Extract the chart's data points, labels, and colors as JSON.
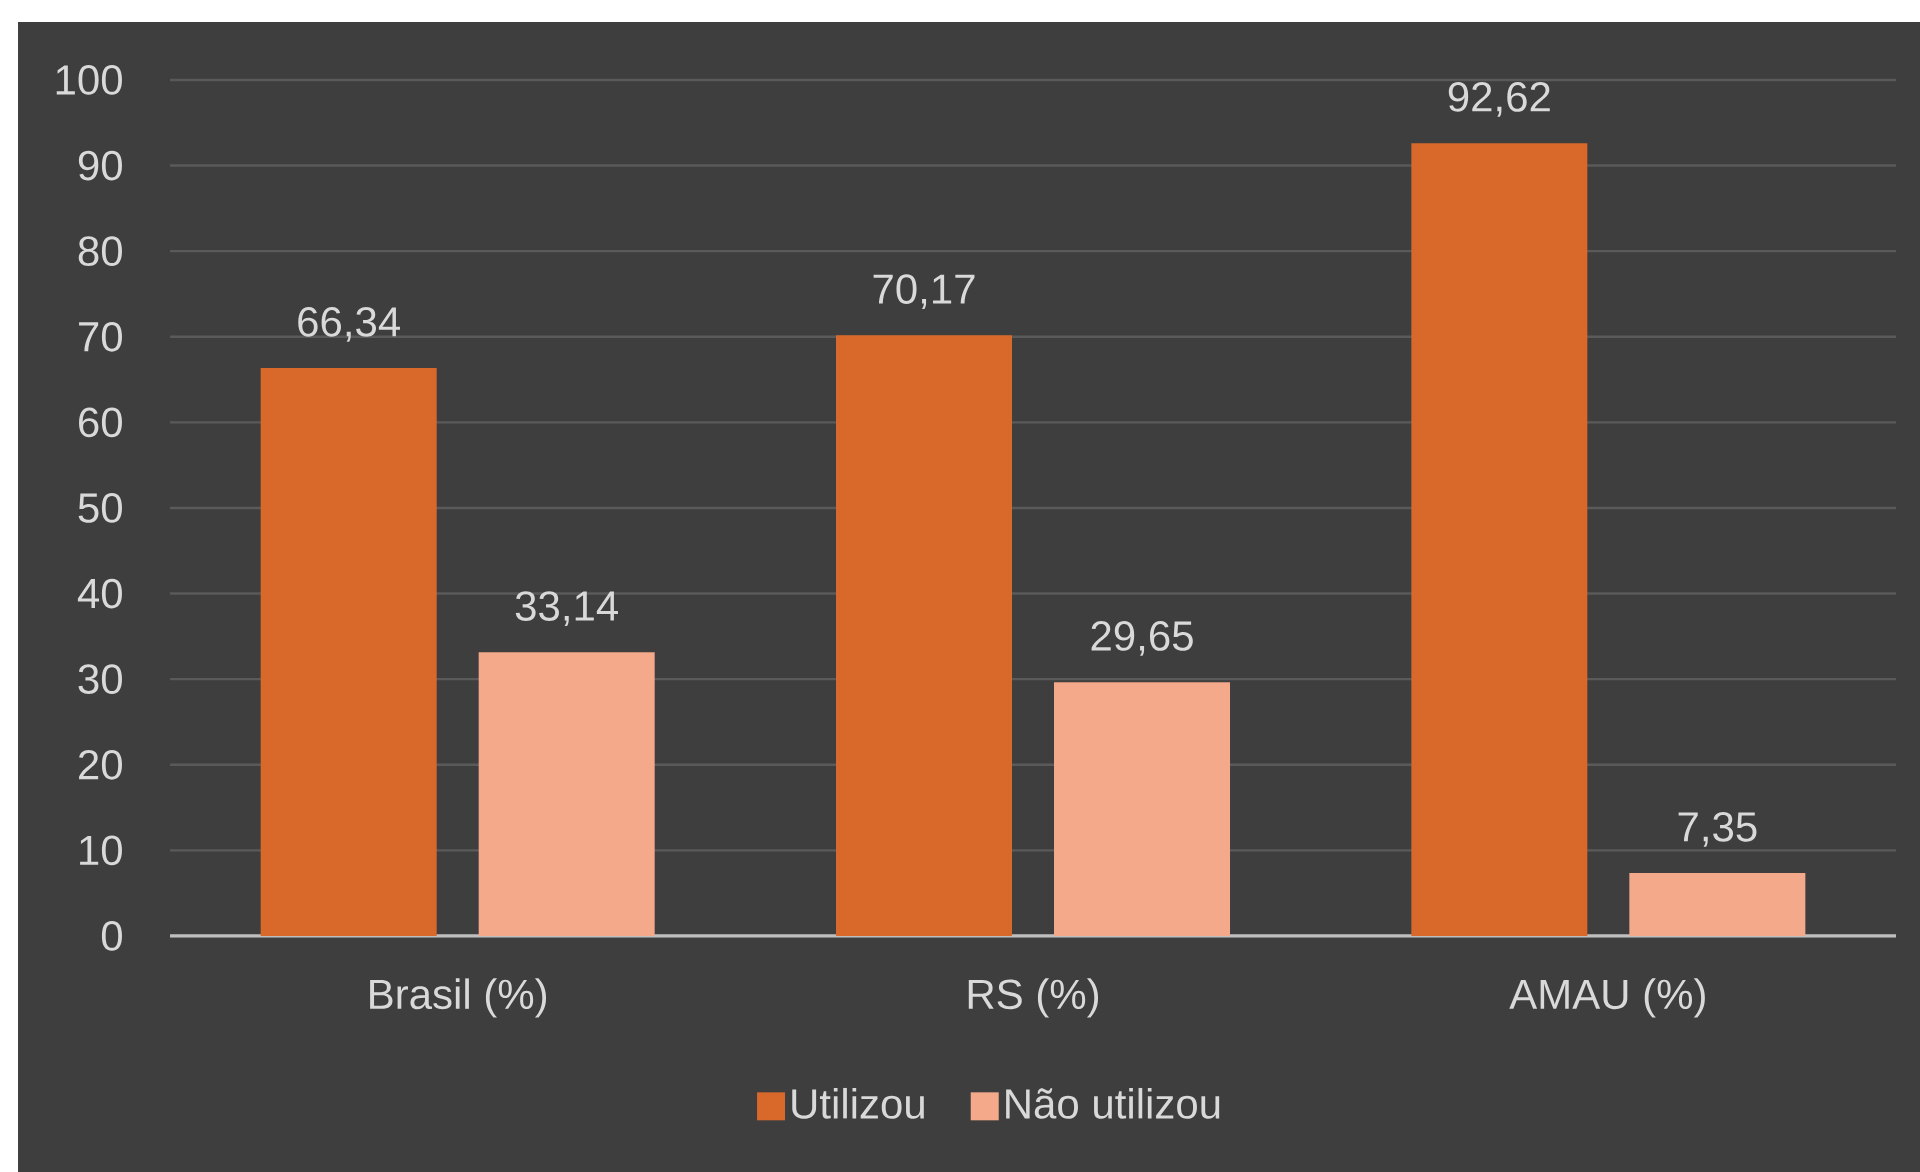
{
  "chart_data": {
    "type": "bar",
    "categories": [
      "Brasil (%)",
      "RS (%)",
      "AMAU (%)"
    ],
    "series": [
      {
        "name": "Utilizou",
        "color": "#d9692a",
        "values": [
          66.34,
          70.17,
          92.62
        ],
        "value_labels": [
          "66,34",
          "70,17",
          "92,62"
        ]
      },
      {
        "name": "Não utilizou",
        "color": "#f4a98a",
        "values": [
          33.14,
          29.65,
          7.35
        ],
        "value_labels": [
          "33,14",
          "29,65",
          "7,35"
        ]
      }
    ],
    "ylim": [
      0,
      100
    ],
    "yticks": [
      0,
      10,
      20,
      30,
      40,
      50,
      60,
      70,
      80,
      90,
      100
    ],
    "grid": "y",
    "legend": "bottom"
  }
}
